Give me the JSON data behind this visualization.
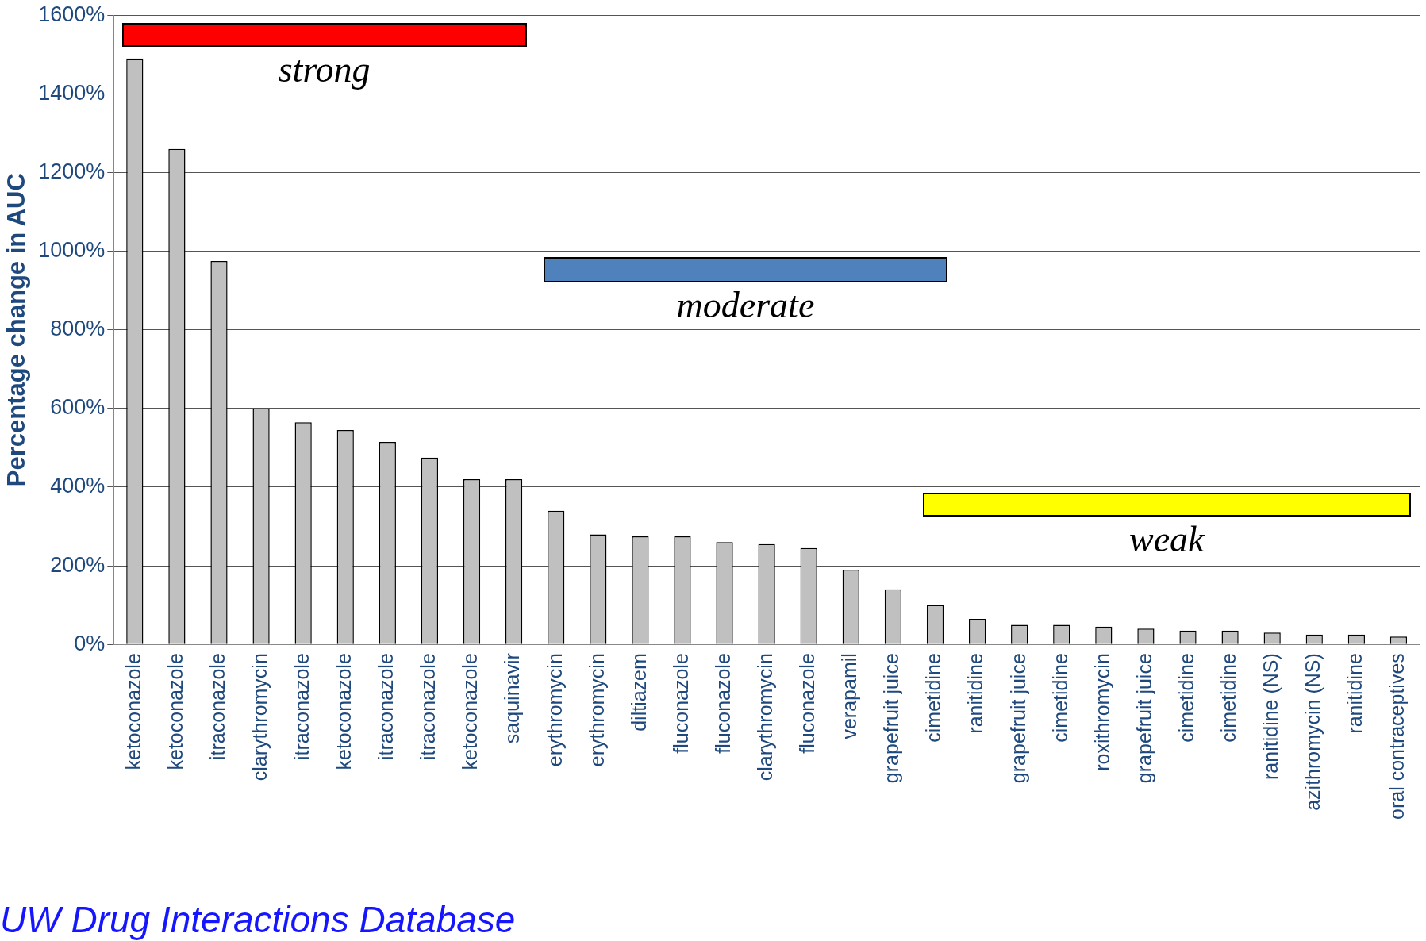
{
  "chart_data": {
    "type": "bar",
    "ylabel": "Percentage change in AUC",
    "categories": [
      "ketoconazole",
      "ketoconazole",
      "itraconazole",
      "clarythromycin",
      "itraconazole",
      "ketoconazole",
      "itraconazole",
      "itraconazole",
      "ketoconazole",
      "saquinavir",
      "erythromycin",
      "erythromycin",
      "diltiazem",
      "fluconazole",
      "fluconazole",
      "clarythromycin",
      "fluconazole",
      "verapamil",
      "grapefruit juice",
      "cimetidine",
      "ranitidine",
      "grapefruit juice",
      "cimetidine",
      "roxithromycin",
      "grapefruit juice",
      "cimetidine",
      "cimetidine",
      "ranitidine (NS)",
      "azithromycin (NS)",
      "ranitidine",
      "oral contraceptives"
    ],
    "values": [
      1490,
      1260,
      975,
      600,
      565,
      545,
      515,
      475,
      420,
      420,
      340,
      280,
      275,
      275,
      260,
      255,
      245,
      190,
      140,
      100,
      65,
      50,
      50,
      45,
      40,
      35,
      35,
      30,
      25,
      25,
      20
    ],
    "color": "#c0c0c0",
    "ylim": [
      0,
      1600
    ],
    "yticks": [
      {
        "value": 0,
        "label": "0%"
      },
      {
        "value": 200,
        "label": "200%"
      },
      {
        "value": 400,
        "label": "400%"
      },
      {
        "value": 600,
        "label": "600%"
      },
      {
        "value": 800,
        "label": "800%"
      },
      {
        "value": 1000,
        "label": "1000%"
      },
      {
        "value": 1200,
        "label": "1200%"
      },
      {
        "value": 1400,
        "label": "1400%"
      },
      {
        "value": 1600,
        "label": "1600%"
      }
    ],
    "grid": "y",
    "annotations": [
      "strong",
      "moderate",
      "weak",
      "UW Drug Interactions Database"
    ]
  }
}
